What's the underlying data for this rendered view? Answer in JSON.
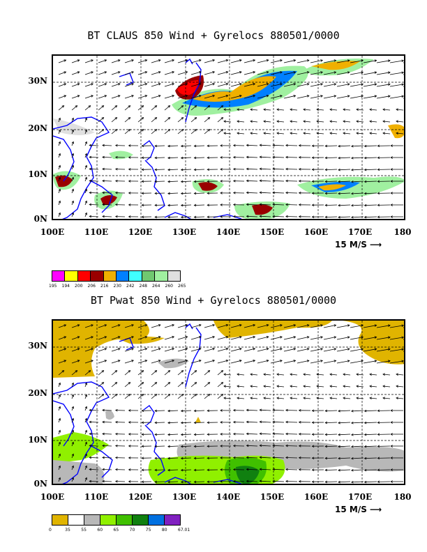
{
  "top": {
    "title": "BT CLAUS 850 Wind + Gyrelocs 880501/0000",
    "colorbar": {
      "colors": [
        "#ff00ff",
        "#ffff00",
        "#ff0000",
        "#990000",
        "#f0b000",
        "#0080ff",
        "#40ffff",
        "#70c870",
        "#a0f0a0",
        "#e0e0e0"
      ],
      "labels": [
        "195",
        "194",
        "200",
        "206",
        "216",
        "230",
        "242",
        "248",
        "264",
        "260",
        "265"
      ]
    }
  },
  "bottom": {
    "title": "BT Pwat 850 Wind + Gyrelocs 880501/0000",
    "colorbar": {
      "colors": [
        "#e0b400",
        "#ffffff",
        "#b8b8b8",
        "#90f000",
        "#40c000",
        "#108010",
        "#0070e0",
        "#8020c0"
      ],
      "labels": [
        "0",
        "35",
        "55",
        "60",
        "65",
        "70",
        "75",
        "80",
        "67.01"
      ]
    }
  },
  "axes": {
    "x_labels": [
      "100E",
      "110E",
      "120E",
      "130E",
      "140E",
      "150E",
      "160E",
      "170E",
      "180"
    ],
    "y_labels": [
      "30N",
      "20N",
      "10N",
      "0N"
    ],
    "vector_ref": "15 M/S"
  }
}
